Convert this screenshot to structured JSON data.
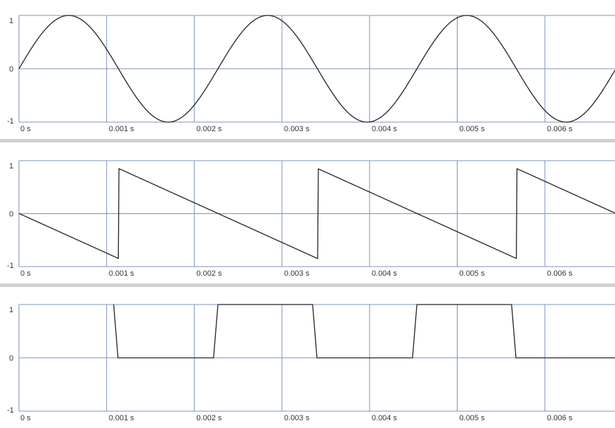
{
  "chart_data": [
    {
      "type": "line",
      "waveform": "sine",
      "x_unit": "s",
      "x_ticks": [
        "0 s",
        "0.001 s",
        "0.002 s",
        "0.003 s",
        "0.004 s",
        "0.005 s",
        "0.006 s"
      ],
      "y_ticks": [
        "1",
        "0",
        "-1"
      ],
      "xlim": [
        0,
        0.0068
      ],
      "ylim": [
        -1,
        1
      ],
      "period": 0.00227,
      "phase_offset": 0,
      "grid": true
    },
    {
      "type": "line",
      "waveform": "sawtooth",
      "x_unit": "s",
      "x_ticks": [
        "0 s",
        "0.001 s",
        "0.002 s",
        "0.003 s",
        "0.004 s",
        "0.005 s",
        "0.006 s"
      ],
      "y_ticks": [
        "1",
        "0",
        "-1"
      ],
      "xlim": [
        0,
        0.0068
      ],
      "ylim": [
        -1,
        1
      ],
      "period": 0.00227,
      "phase_offset": 0.00113,
      "grid": true
    },
    {
      "type": "line",
      "waveform": "pulse",
      "x_unit": "s",
      "x_ticks": [
        "0 s",
        "0.001 s",
        "0.002 s",
        "0.003 s",
        "0.004 s",
        "0.005 s",
        "0.006 s"
      ],
      "y_ticks": [
        "1",
        "0",
        "-1"
      ],
      "xlim": [
        0,
        0.0068
      ],
      "ylim": [
        -1,
        1
      ],
      "points": [
        [
          0.00108,
          1
        ],
        [
          0.00113,
          0
        ],
        [
          0.00222,
          0
        ],
        [
          0.00227,
          1
        ],
        [
          0.00335,
          1
        ],
        [
          0.0034,
          0
        ],
        [
          0.00449,
          0
        ],
        [
          0.00454,
          1
        ],
        [
          0.00562,
          1
        ],
        [
          0.00567,
          0
        ],
        [
          0.0068,
          0
        ]
      ],
      "grid": true
    }
  ],
  "colors": {
    "grid": "#7b93c2",
    "trace": "#222222",
    "separator": "#d0d0d0",
    "tick_text": "#333333"
  }
}
